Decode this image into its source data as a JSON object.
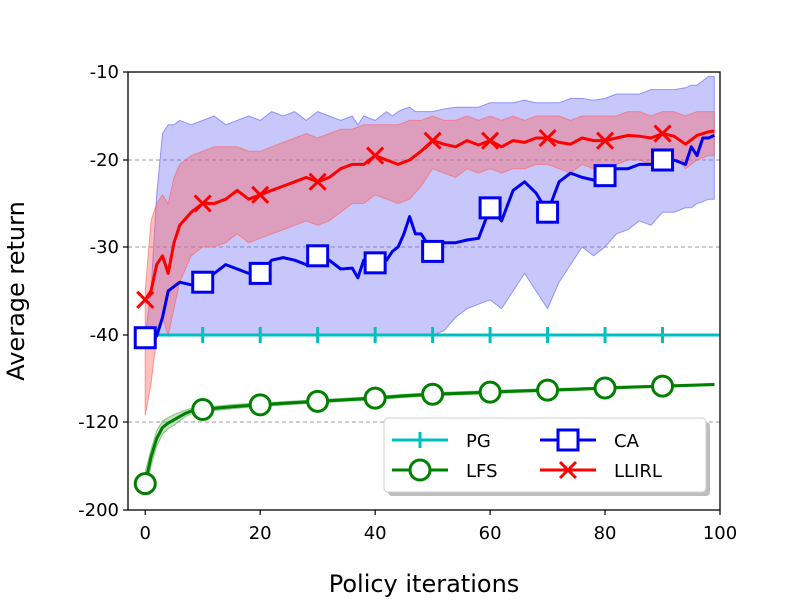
{
  "chart_data": {
    "type": "line",
    "xlabel": "Policy iterations",
    "ylabel": "Average return",
    "xlim": [
      -3,
      100
    ],
    "x_ticks": [
      0,
      20,
      40,
      60,
      80,
      100
    ],
    "x_tick_labels": [
      "0",
      "20",
      "40",
      "60",
      "80",
      "100"
    ],
    "y_scale": "piecewise (broken)",
    "y_ticks": [
      -200,
      -120,
      -40,
      -30,
      -20,
      -10
    ],
    "y_tick_labels": [
      "-200",
      "-120",
      "-40",
      "-30",
      "-20",
      "-10"
    ],
    "y_ticks_dashed_grid": [
      -120,
      -30,
      -20
    ],
    "grid": "dashed horizontal lines at -120, -30, -20",
    "legend": {
      "placement": "lower-right",
      "columns": 2,
      "order": [
        "PG",
        "CA",
        "LFS",
        "LLIRL"
      ]
    },
    "series": [
      {
        "name": "PG",
        "color": "#00bfbf",
        "marker": "plus",
        "x": [
          0,
          10,
          20,
          30,
          40,
          50,
          60,
          70,
          80,
          90,
          100
        ],
        "y": [
          -40,
          -40,
          -40,
          -40,
          -40,
          -40,
          -40,
          -40,
          -40,
          -40,
          -40
        ],
        "marker_x": [
          0,
          10,
          20,
          30,
          40,
          50,
          60,
          70,
          80,
          90
        ]
      },
      {
        "name": "LFS",
        "color": "#008000",
        "marker": "circle",
        "x": [
          0,
          1,
          2,
          3,
          4,
          5,
          6,
          7,
          8,
          10,
          12,
          15,
          18,
          20,
          25,
          30,
          35,
          40,
          45,
          50,
          55,
          60,
          65,
          70,
          75,
          80,
          85,
          90,
          95,
          99
        ],
        "y": [
          -176,
          -152,
          -135,
          -125,
          -121,
          -118,
          -115,
          -112,
          -110,
          -108.5,
          -107.5,
          -106,
          -104.8,
          -104.2,
          -102.5,
          -101,
          -99.5,
          -98,
          -96,
          -94.5,
          -93.5,
          -92.5,
          -91.5,
          -90.7,
          -89.8,
          -88.7,
          -87.8,
          -87,
          -86.2,
          -85.5
        ],
        "band_upper": [
          -165,
          -145,
          -128,
          -119,
          -116,
          -113,
          -111,
          -109,
          -107.5,
          -106.5,
          -105.5,
          -104,
          -103,
          -102.5,
          -101,
          -99.5,
          -98,
          -96.5,
          -94.5,
          -93,
          -92,
          -91,
          -90.2,
          -89.4,
          -88.6,
          -87.6,
          -86.8,
          -86,
          -85.2,
          -84.5
        ],
        "band_lower": [
          -185,
          -160,
          -142,
          -131,
          -126,
          -123,
          -119,
          -115,
          -112.5,
          -110.5,
          -109.5,
          -108,
          -106.5,
          -106,
          -104,
          -102.5,
          -101,
          -99.5,
          -97.5,
          -96,
          -95,
          -94,
          -92.8,
          -92,
          -91,
          -89.8,
          -88.8,
          -88,
          -87.2,
          -86.5
        ],
        "marker_x": [
          0,
          10,
          20,
          30,
          40,
          50,
          60,
          70,
          80,
          90
        ]
      },
      {
        "name": "CA",
        "color": "#0000ee",
        "marker": "square",
        "x": [
          0,
          1,
          2,
          3,
          4,
          5,
          6,
          8,
          10,
          12,
          14,
          16,
          18,
          20,
          22,
          24,
          26,
          28,
          30,
          32,
          34,
          36,
          37,
          38,
          40,
          42,
          43,
          44,
          45,
          46,
          47,
          48,
          50,
          52,
          54,
          56,
          58,
          60,
          62,
          64,
          66,
          68,
          70,
          72,
          74,
          76,
          78,
          80,
          82,
          84,
          86,
          88,
          90,
          92,
          94,
          95,
          96,
          97,
          98,
          99
        ],
        "y": [
          -42.5,
          -42,
          -41,
          -38,
          -35,
          -34.5,
          -34,
          -34.3,
          -34,
          -33,
          -32,
          -32.5,
          -33,
          -33,
          -31.5,
          -31.2,
          -31.5,
          -32,
          -31,
          -31.5,
          -32.5,
          -32.4,
          -33.5,
          -31.5,
          -31.8,
          -31.5,
          -30.5,
          -30,
          -28.5,
          -26.5,
          -28.5,
          -28.5,
          -30.5,
          -29.5,
          -29.5,
          -29.2,
          -29,
          -25.5,
          -27,
          -23.5,
          -22.5,
          -23.8,
          -26,
          -22.5,
          -21.5,
          -22,
          -22.3,
          -21.8,
          -21,
          -21,
          -20.5,
          -20.5,
          -20,
          -20,
          -20.5,
          -18.5,
          -19.5,
          -17.5,
          -17.5,
          -17.2
        ],
        "band_upper": [
          -40.2,
          -35,
          -24,
          -17,
          -16,
          -16,
          -15.5,
          -16,
          -15.5,
          -15,
          -16,
          -15.5,
          -15,
          -15.5,
          -14.5,
          -15,
          -14.5,
          -15.5,
          -14.5,
          -15,
          -15.5,
          -15,
          -16,
          -15,
          -15.5,
          -14.5,
          -15,
          -14.5,
          -14.2,
          -14,
          -14.5,
          -14.5,
          -14.5,
          -14.2,
          -14,
          -14,
          -14,
          -13.5,
          -13.5,
          -13.5,
          -13.2,
          -13.5,
          -13.5,
          -13.5,
          -13,
          -13,
          -13.2,
          -13,
          -12.5,
          -12.5,
          -12.5,
          -12,
          -12,
          -12,
          -11.8,
          -11.5,
          -11.5,
          -11,
          -10.5,
          -10.5
        ],
        "band_lower": [
          -40.8,
          -40.8,
          -40.8,
          -40.8,
          -40.8,
          -40.7,
          -40.7,
          -40.7,
          -40.6,
          -40.6,
          -40.6,
          -40.6,
          -40.5,
          -40.5,
          -40.5,
          -40.5,
          -40.5,
          -40.5,
          -40.5,
          -40.5,
          -40.5,
          -40.5,
          -40.5,
          -40.5,
          -40.5,
          -40.5,
          -40.5,
          -40.5,
          -40.5,
          -40.5,
          -40.5,
          -40.3,
          -40.2,
          -39.5,
          -38,
          -37,
          -36.5,
          -36,
          -37,
          -35,
          -33,
          -35,
          -37,
          -34,
          -32,
          -30,
          -31,
          -30,
          -28.5,
          -28,
          -27,
          -27.5,
          -26,
          -26,
          -25.5,
          -25.5,
          -25,
          -24.8,
          -24.5,
          -24.5
        ],
        "marker_x": [
          0,
          10,
          20,
          30,
          40,
          50,
          60,
          70,
          80,
          90
        ]
      },
      {
        "name": "LLIRL",
        "color": "#ff0000",
        "marker": "x",
        "x": [
          0,
          1,
          2,
          3,
          4,
          5,
          6,
          8,
          10,
          12,
          14,
          16,
          18,
          20,
          22,
          24,
          26,
          28,
          30,
          32,
          34,
          36,
          38,
          40,
          42,
          44,
          46,
          48,
          50,
          52,
          54,
          56,
          58,
          60,
          62,
          64,
          66,
          68,
          70,
          72,
          74,
          76,
          78,
          80,
          82,
          84,
          86,
          88,
          90,
          92,
          94,
          96,
          98,
          99
        ],
        "y": [
          -36,
          -35,
          -32,
          -31,
          -33,
          -29.5,
          -27.5,
          -26,
          -25,
          -25,
          -24.5,
          -23.5,
          -24.5,
          -24,
          -23.5,
          -23,
          -22.5,
          -22,
          -22.5,
          -22,
          -21,
          -20.5,
          -20.5,
          -19.5,
          -20,
          -20.5,
          -20,
          -19,
          -17.8,
          -18.2,
          -18.5,
          -17.8,
          -18.3,
          -17.8,
          -18.5,
          -17.8,
          -18,
          -17.5,
          -17.5,
          -18,
          -18.2,
          -17.5,
          -17.8,
          -17.8,
          -17.5,
          -17.2,
          -17.3,
          -17.5,
          -17,
          -17.3,
          -18.2,
          -17.2,
          -16.8,
          -16.7
        ],
        "band_upper": [
          -35,
          -27,
          -25,
          -24,
          -25,
          -22,
          -20.5,
          -19.5,
          -19,
          -18.5,
          -18.5,
          -18.5,
          -19,
          -19,
          -18.5,
          -18,
          -17.5,
          -17,
          -17.5,
          -17,
          -16.5,
          -16.5,
          -16,
          -16,
          -16,
          -16,
          -15.5,
          -15.5,
          -15,
          -15.5,
          -15.5,
          -15,
          -15.5,
          -15,
          -15.5,
          -15,
          -15.5,
          -15,
          -15,
          -15,
          -15.5,
          -15,
          -15,
          -15,
          -15,
          -14.5,
          -14.5,
          -15,
          -14.5,
          -14.5,
          -15,
          -14.5,
          -14.5,
          -14.5
        ],
        "band_lower": [
          -114,
          -85,
          -42,
          -38,
          -40.5,
          -37,
          -34,
          -31,
          -30,
          -30,
          -29.5,
          -28.5,
          -29.5,
          -29,
          -28.5,
          -28,
          -27.5,
          -27,
          -27.5,
          -27,
          -26,
          -25,
          -25,
          -24,
          -24.5,
          -25,
          -24.5,
          -23,
          -21,
          -21.5,
          -22,
          -21,
          -21.5,
          -21,
          -21.5,
          -21,
          -21,
          -20.5,
          -20.5,
          -21,
          -21.5,
          -20.5,
          -21,
          -21,
          -20.5,
          -20,
          -20,
          -20.5,
          -19.5,
          -19.5,
          -21,
          -20,
          -19.5,
          -19.5
        ],
        "marker_x": [
          0,
          10,
          20,
          30,
          40,
          50,
          60,
          70,
          80,
          90
        ]
      }
    ]
  }
}
